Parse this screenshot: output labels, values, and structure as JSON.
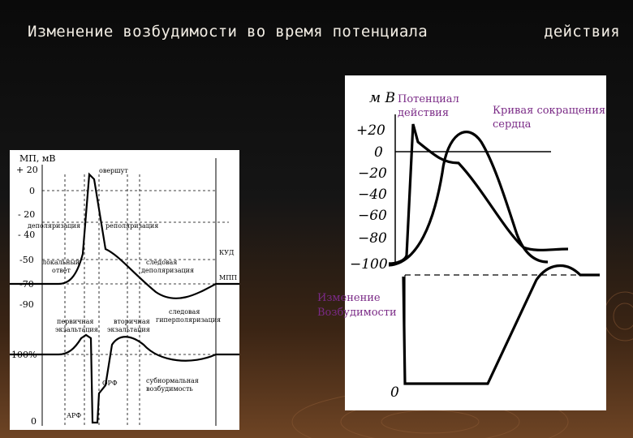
{
  "slide": {
    "title_part1": "Изменение возбудимости во время потенциала",
    "title_part2": "действия"
  },
  "left_diagram": {
    "y_axis_label": "МП, мВ",
    "y_ticks": [
      "+ 20",
      "0",
      "- 20",
      "- 40",
      "-50",
      "-70",
      "-90"
    ],
    "excitability_ticks": [
      "100%",
      "0"
    ],
    "annotations": {
      "overshoot": "овершут",
      "depolarization": "деполяризация",
      "repolarization": "реполяризация",
      "local_response_1": "локальный",
      "local_response_2": "ответ",
      "trace_depol_1": "следовая",
      "trace_depol_2": "деполяризация",
      "trace_hyper_1": "следовая",
      "trace_hyper_2": "гиперполяризация",
      "kud": "КУД",
      "mpp": "МПП",
      "primary_exaltation_1": "первичная",
      "primary_exaltation_2": "экзальтация",
      "secondary_exaltation_1": "вторичная",
      "secondary_exaltation_2": "экзальтация",
      "orf": "ОРФ",
      "arf": "АРФ",
      "subnormal_1": "субнормальная",
      "subnormal_2": "возбудимость"
    }
  },
  "right_diagram": {
    "y_axis_label": "м В",
    "y_ticks": [
      "+20",
      "0",
      "−20",
      "−40",
      "−60",
      "−80",
      "−100"
    ],
    "ap_label_1": "Потенциал",
    "ap_label_2": "действия",
    "contraction_label_1": "Кривая сокращения",
    "contraction_label_2": "сердца",
    "excitability_label_1": "Изменение",
    "excitability_label_2": "Возбудимости",
    "zero_label": "0"
  }
}
